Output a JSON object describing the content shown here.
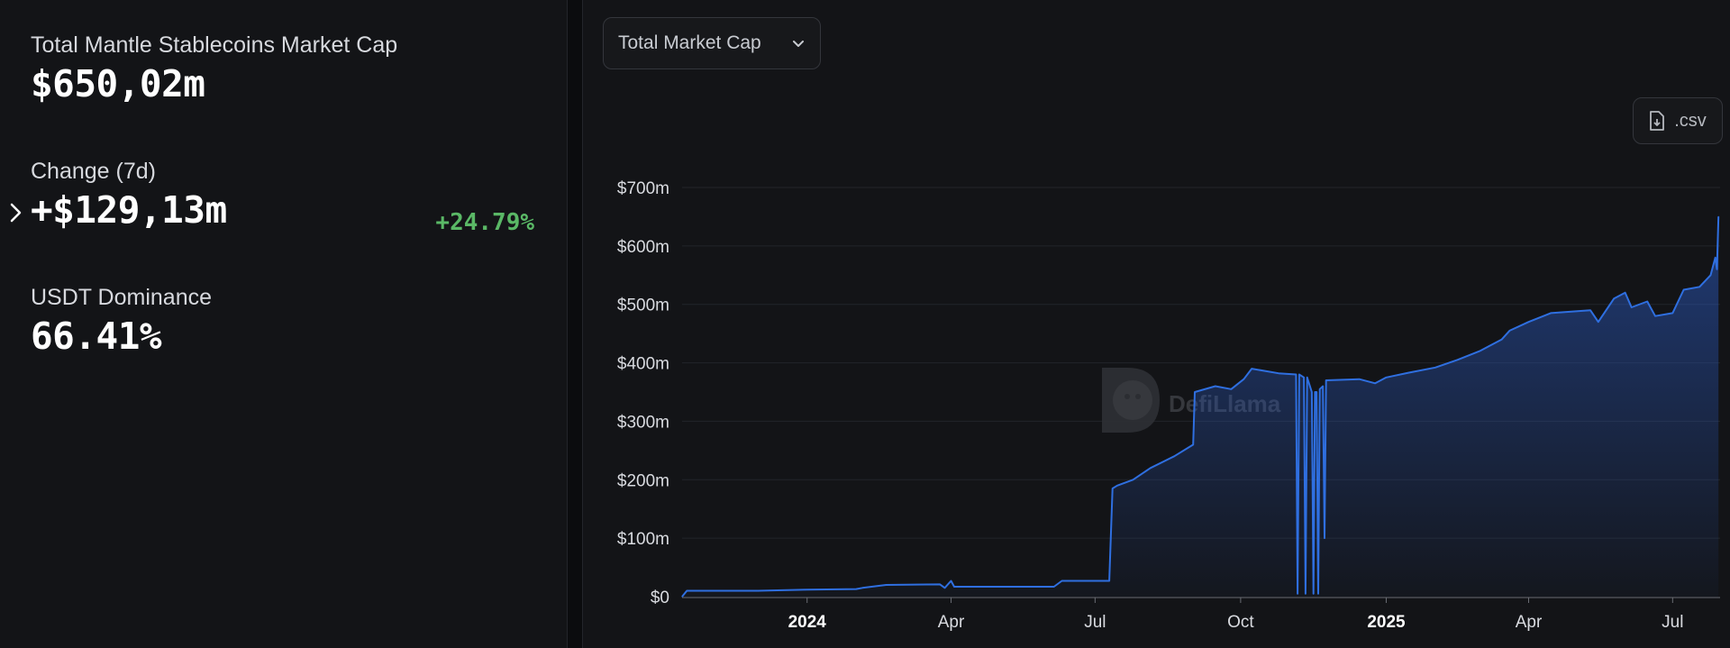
{
  "summary": {
    "market_cap_label": "Total Mantle Stablecoins Market Cap",
    "market_cap_value": "$650,02m",
    "change_label": "Change (7d)",
    "change_value": "+$129,13m",
    "change_percent": "+24.79%",
    "dominance_label": "USDT Dominance",
    "dominance_value": "66.41%"
  },
  "toolbar": {
    "metric_select_label": "Total Market Cap",
    "csv_button_label": ".csv"
  },
  "watermark": {
    "text": "DefiLlama"
  },
  "colors": {
    "line": "#2f6fe0",
    "positive": "#5ab866",
    "background": "#131417",
    "grid": "#23252a"
  },
  "chart_data": {
    "type": "area",
    "title": "",
    "xlabel": "",
    "ylabel": "",
    "ylim": [
      0,
      700
    ],
    "y_ticks": [
      {
        "value": 0,
        "label": "$0"
      },
      {
        "value": 100,
        "label": "$100m"
      },
      {
        "value": 200,
        "label": "$200m"
      },
      {
        "value": 300,
        "label": "$300m"
      },
      {
        "value": 400,
        "label": "$400m"
      },
      {
        "value": 500,
        "label": "$500m"
      },
      {
        "value": 600,
        "label": "$600m"
      },
      {
        "value": 700,
        "label": "$700m"
      }
    ],
    "x_range": [
      "2023-10-14",
      "2025-07-31"
    ],
    "x_ticks": [
      {
        "date": "2024-01-01",
        "label": "2024",
        "bold": true
      },
      {
        "date": "2024-04-01",
        "label": "Apr",
        "bold": false
      },
      {
        "date": "2024-07-01",
        "label": "Jul",
        "bold": false
      },
      {
        "date": "2024-10-01",
        "label": "Oct",
        "bold": false
      },
      {
        "date": "2025-01-01",
        "label": "2025",
        "bold": true
      },
      {
        "date": "2025-04-01",
        "label": "Apr",
        "bold": false
      },
      {
        "date": "2025-07-01",
        "label": "Jul",
        "bold": false
      }
    ],
    "grid": true,
    "series": [
      {
        "points": [
          [
            "2023-10-14",
            0
          ],
          [
            "2023-10-17",
            10
          ],
          [
            "2023-12-01",
            10
          ],
          [
            "2024-01-01",
            12
          ],
          [
            "2024-02-01",
            13
          ],
          [
            "2024-02-05",
            15
          ],
          [
            "2024-02-20",
            20
          ],
          [
            "2024-03-25",
            21
          ],
          [
            "2024-03-28",
            15
          ],
          [
            "2024-04-01",
            27
          ],
          [
            "2024-04-03",
            17
          ],
          [
            "2024-06-05",
            17
          ],
          [
            "2024-06-10",
            27
          ],
          [
            "2024-07-10",
            27
          ],
          [
            "2024-07-12",
            185
          ],
          [
            "2024-07-15",
            190
          ],
          [
            "2024-07-25",
            200
          ],
          [
            "2024-08-05",
            220
          ],
          [
            "2024-08-20",
            240
          ],
          [
            "2024-09-01",
            260
          ],
          [
            "2024-09-02",
            350
          ],
          [
            "2024-09-15",
            360
          ],
          [
            "2024-09-25",
            355
          ],
          [
            "2024-10-03",
            372
          ],
          [
            "2024-10-08",
            390
          ],
          [
            "2024-10-25",
            382
          ],
          [
            "2024-11-05",
            380
          ],
          [
            "2024-11-06",
            5
          ],
          [
            "2024-11-07",
            380
          ],
          [
            "2024-11-10",
            375
          ],
          [
            "2024-11-11",
            5
          ],
          [
            "2024-11-12",
            375
          ],
          [
            "2024-11-15",
            350
          ],
          [
            "2024-11-16",
            5
          ],
          [
            "2024-11-17",
            350
          ],
          [
            "2024-11-18",
            350
          ],
          [
            "2024-11-19",
            5
          ],
          [
            "2024-11-20",
            355
          ],
          [
            "2024-11-22",
            360
          ],
          [
            "2024-11-23",
            100
          ],
          [
            "2024-11-24",
            370
          ],
          [
            "2024-12-15",
            372
          ],
          [
            "2024-12-25",
            365
          ],
          [
            "2025-01-01",
            375
          ],
          [
            "2025-01-15",
            383
          ],
          [
            "2025-02-01",
            392
          ],
          [
            "2025-02-15",
            405
          ],
          [
            "2025-03-01",
            420
          ],
          [
            "2025-03-15",
            440
          ],
          [
            "2025-03-20",
            455
          ],
          [
            "2025-04-01",
            470
          ],
          [
            "2025-04-15",
            485
          ],
          [
            "2025-05-10",
            490
          ],
          [
            "2025-05-15",
            470
          ],
          [
            "2025-05-25",
            510
          ],
          [
            "2025-06-01",
            520
          ],
          [
            "2025-06-05",
            495
          ],
          [
            "2025-06-15",
            505
          ],
          [
            "2025-06-20",
            480
          ],
          [
            "2025-07-01",
            485
          ],
          [
            "2025-07-08",
            525
          ],
          [
            "2025-07-18",
            530
          ],
          [
            "2025-07-25",
            550
          ],
          [
            "2025-07-28",
            580
          ],
          [
            "2025-07-29",
            560
          ],
          [
            "2025-07-30",
            650
          ]
        ]
      }
    ]
  }
}
